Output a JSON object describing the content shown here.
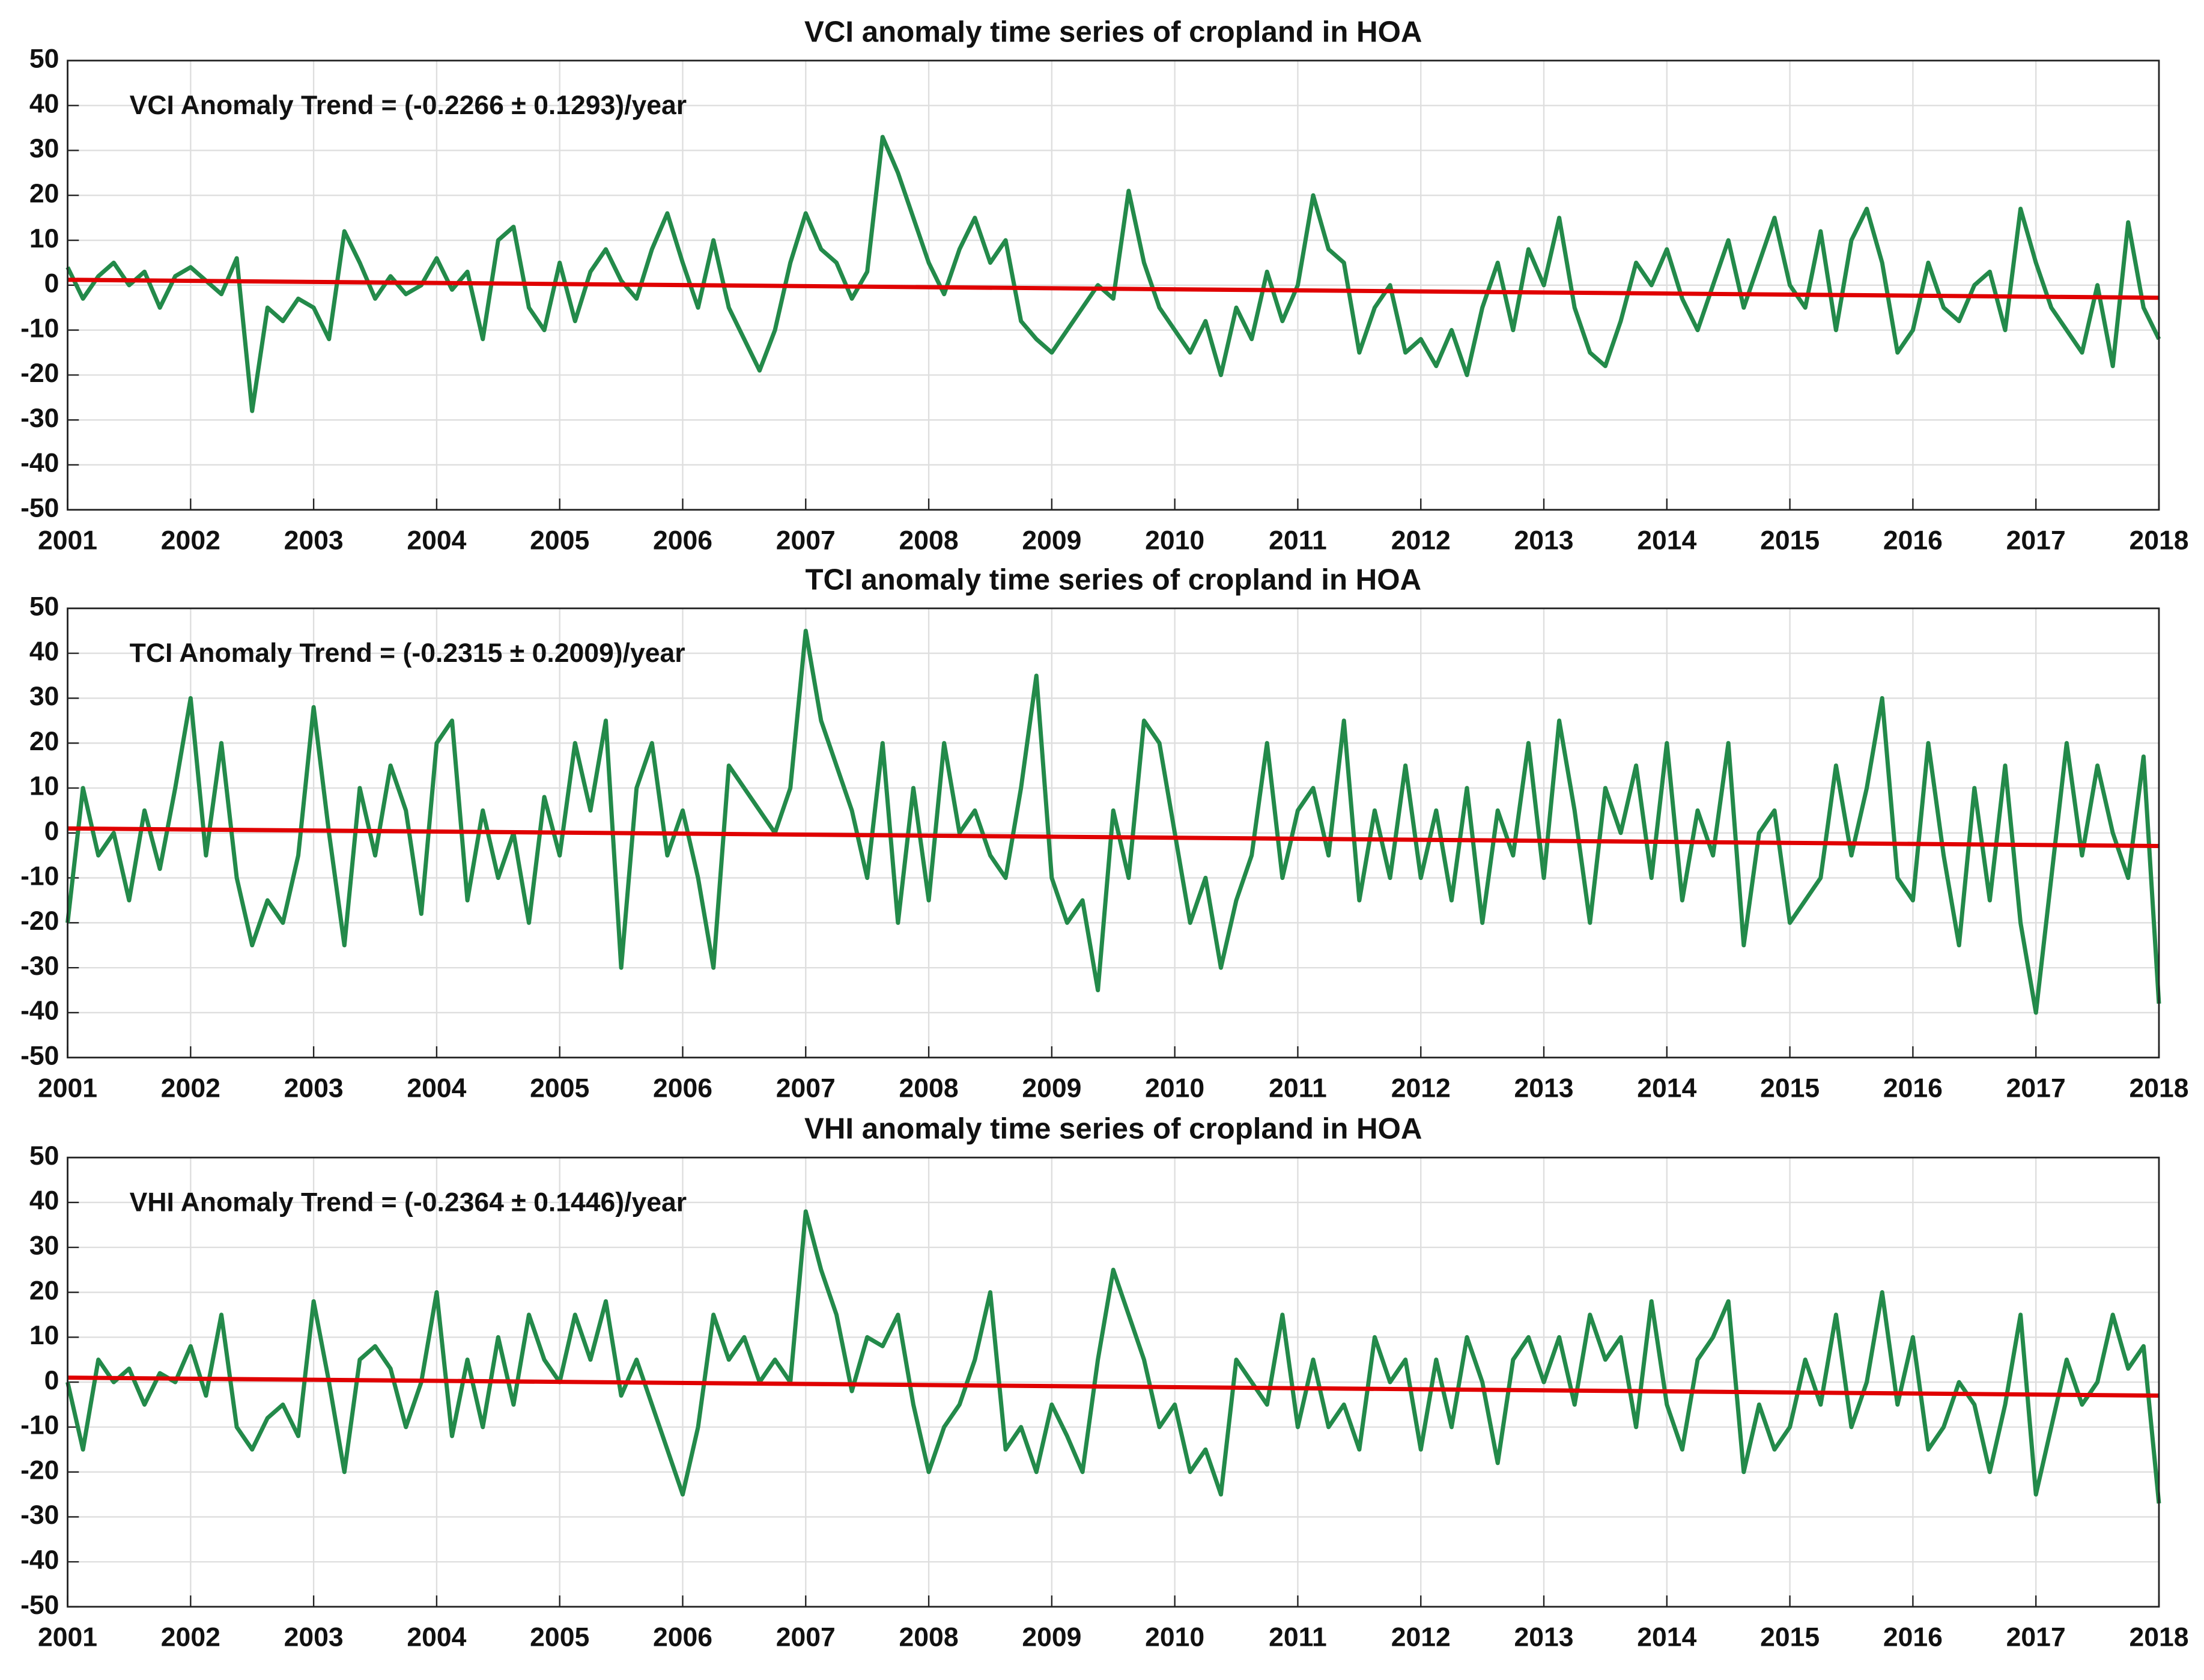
{
  "chart_data": [
    {
      "type": "line",
      "title": "VCI anomaly time series of cropland in HOA",
      "annotation": "VCI Anomaly Trend = (-0.2266 ± 0.1293)/year",
      "xlim": [
        2001,
        2018
      ],
      "ylim": [
        -50,
        50
      ],
      "xticks": [
        2001,
        2002,
        2003,
        2004,
        2005,
        2006,
        2007,
        2008,
        2009,
        2010,
        2011,
        2012,
        2013,
        2014,
        2015,
        2016,
        2017,
        2018
      ],
      "yticks": [
        -50,
        -40,
        -30,
        -20,
        -10,
        0,
        10,
        20,
        30,
        40,
        50
      ],
      "grid": true,
      "series": [
        {
          "color": "#238a4a",
          "x": [
            2001,
            2001.125,
            2001.25,
            2001.375,
            2001.5,
            2001.625,
            2001.75,
            2001.875,
            2002,
            2002.125,
            2002.25,
            2002.375,
            2002.5,
            2002.625,
            2002.75,
            2002.875,
            2003,
            2003.125,
            2003.25,
            2003.375,
            2003.5,
            2003.625,
            2003.75,
            2003.875,
            2004,
            2004.125,
            2004.25,
            2004.375,
            2004.5,
            2004.625,
            2004.75,
            2004.875,
            2005,
            2005.125,
            2005.25,
            2005.375,
            2005.5,
            2005.625,
            2005.75,
            2005.875,
            2006,
            2006.125,
            2006.25,
            2006.375,
            2006.5,
            2006.625,
            2006.75,
            2006.875,
            2007,
            2007.125,
            2007.25,
            2007.375,
            2007.5,
            2007.625,
            2007.75,
            2007.875,
            2008,
            2008.125,
            2008.25,
            2008.375,
            2008.5,
            2008.625,
            2008.75,
            2008.875,
            2009,
            2009.125,
            2009.25,
            2009.375,
            2009.5,
            2009.625,
            2009.75,
            2009.875,
            2010,
            2010.125,
            2010.25,
            2010.375,
            2010.5,
            2010.625,
            2010.75,
            2010.875,
            2011,
            2011.125,
            2011.25,
            2011.375,
            2011.5,
            2011.625,
            2011.75,
            2011.875,
            2012,
            2012.125,
            2012.25,
            2012.375,
            2012.5,
            2012.625,
            2012.75,
            2012.875,
            2013,
            2013.125,
            2013.25,
            2013.375,
            2013.5,
            2013.625,
            2013.75,
            2013.875,
            2014,
            2014.125,
            2014.25,
            2014.375,
            2014.5,
            2014.625,
            2014.75,
            2014.875,
            2015,
            2015.125,
            2015.25,
            2015.375,
            2015.5,
            2015.625,
            2015.75,
            2015.875,
            2016,
            2016.125,
            2016.25,
            2016.375,
            2016.5,
            2016.625,
            2016.75,
            2016.875,
            2017,
            2017.125,
            2017.25,
            2017.375,
            2017.5,
            2017.625,
            2017.75,
            2017.875,
            2018
          ],
          "values": [
            4,
            -3,
            2,
            5,
            0,
            3,
            -5,
            2,
            4,
            1,
            -2,
            6,
            -28,
            -5,
            -8,
            -3,
            -5,
            -12,
            12,
            5,
            -3,
            2,
            -2,
            0,
            6,
            -1,
            3,
            -12,
            10,
            13,
            -5,
            -10,
            5,
            -8,
            3,
            8,
            1,
            -3,
            8,
            16,
            5,
            -5,
            10,
            -5,
            -12,
            -19,
            -10,
            5,
            16,
            8,
            5,
            -3,
            3,
            33,
            25,
            15,
            5,
            -2,
            8,
            15,
            5,
            10,
            -8,
            -12,
            -15,
            -10,
            -5,
            0,
            -3,
            21,
            5,
            -5,
            -10,
            -15,
            -8,
            -20,
            -5,
            -12,
            3,
            -8,
            0,
            20,
            8,
            5,
            -15,
            -5,
            0,
            -15,
            -12,
            -18,
            -10,
            -20,
            -5,
            5,
            -10,
            8,
            0,
            15,
            -5,
            -15,
            -18,
            -8,
            5,
            0,
            8,
            -3,
            -10,
            0,
            10,
            -5,
            5,
            15,
            0,
            -5,
            12,
            -10,
            10,
            17,
            5,
            -15,
            -10,
            5,
            -5,
            -8,
            0,
            3,
            -10,
            17,
            5,
            -5,
            -10,
            -15,
            0,
            -18,
            14,
            -5,
            -12
          ]
        },
        {
          "color": "#e00000",
          "x": [
            2001,
            2018
          ],
          "values": [
            1.2,
            -2.8
          ]
        }
      ]
    },
    {
      "type": "line",
      "title": "TCI anomaly time series of cropland in HOA",
      "annotation": "TCI Anomaly Trend = (-0.2315 ± 0.2009)/year",
      "xlim": [
        2001,
        2018
      ],
      "ylim": [
        -50,
        50
      ],
      "xticks": [
        2001,
        2002,
        2003,
        2004,
        2005,
        2006,
        2007,
        2008,
        2009,
        2010,
        2011,
        2012,
        2013,
        2014,
        2015,
        2016,
        2017,
        2018
      ],
      "yticks": [
        -50,
        -40,
        -30,
        -20,
        -10,
        0,
        10,
        20,
        30,
        40,
        50
      ],
      "grid": true,
      "series": [
        {
          "color": "#238a4a",
          "x": [
            2001,
            2001.125,
            2001.25,
            2001.375,
            2001.5,
            2001.625,
            2001.75,
            2001.875,
            2002,
            2002.125,
            2002.25,
            2002.375,
            2002.5,
            2002.625,
            2002.75,
            2002.875,
            2003,
            2003.125,
            2003.25,
            2003.375,
            2003.5,
            2003.625,
            2003.75,
            2003.875,
            2004,
            2004.125,
            2004.25,
            2004.375,
            2004.5,
            2004.625,
            2004.75,
            2004.875,
            2005,
            2005.125,
            2005.25,
            2005.375,
            2005.5,
            2005.625,
            2005.75,
            2005.875,
            2006,
            2006.125,
            2006.25,
            2006.375,
            2006.5,
            2006.625,
            2006.75,
            2006.875,
            2007,
            2007.125,
            2007.25,
            2007.375,
            2007.5,
            2007.625,
            2007.75,
            2007.875,
            2008,
            2008.125,
            2008.25,
            2008.375,
            2008.5,
            2008.625,
            2008.75,
            2008.875,
            2009,
            2009.125,
            2009.25,
            2009.375,
            2009.5,
            2009.625,
            2009.75,
            2009.875,
            2010,
            2010.125,
            2010.25,
            2010.375,
            2010.5,
            2010.625,
            2010.75,
            2010.875,
            2011,
            2011.125,
            2011.25,
            2011.375,
            2011.5,
            2011.625,
            2011.75,
            2011.875,
            2012,
            2012.125,
            2012.25,
            2012.375,
            2012.5,
            2012.625,
            2012.75,
            2012.875,
            2013,
            2013.125,
            2013.25,
            2013.375,
            2013.5,
            2013.625,
            2013.75,
            2013.875,
            2014,
            2014.125,
            2014.25,
            2014.375,
            2014.5,
            2014.625,
            2014.75,
            2014.875,
            2015,
            2015.125,
            2015.25,
            2015.375,
            2015.5,
            2015.625,
            2015.75,
            2015.875,
            2016,
            2016.125,
            2016.25,
            2016.375,
            2016.5,
            2016.625,
            2016.75,
            2016.875,
            2017,
            2017.125,
            2017.25,
            2017.375,
            2017.5,
            2017.625,
            2017.75,
            2017.875,
            2018
          ],
          "values": [
            -20,
            10,
            -5,
            0,
            -15,
            5,
            -8,
            10,
            30,
            -5,
            20,
            -10,
            -25,
            -15,
            -20,
            -5,
            28,
            0,
            -25,
            10,
            -5,
            15,
            5,
            -18,
            20,
            25,
            -15,
            5,
            -10,
            0,
            -20,
            8,
            -5,
            20,
            5,
            25,
            -30,
            10,
            20,
            -5,
            5,
            -10,
            -30,
            15,
            10,
            5,
            0,
            10,
            45,
            25,
            15,
            5,
            -10,
            20,
            -20,
            10,
            -15,
            20,
            0,
            5,
            -5,
            -10,
            10,
            35,
            -10,
            -20,
            -15,
            -35,
            5,
            -10,
            25,
            20,
            0,
            -20,
            -10,
            -30,
            -15,
            -5,
            20,
            -10,
            5,
            10,
            -5,
            25,
            -15,
            5,
            -10,
            15,
            -10,
            5,
            -15,
            10,
            -20,
            5,
            -5,
            20,
            -10,
            25,
            5,
            -20,
            10,
            0,
            15,
            -10,
            20,
            -15,
            5,
            -5,
            20,
            -25,
            0,
            5,
            -20,
            -15,
            -10,
            15,
            -5,
            10,
            30,
            -10,
            -15,
            20,
            -5,
            -25,
            10,
            -15,
            15,
            -20,
            -40,
            -10,
            20,
            -5,
            15,
            0,
            -10,
            17,
            -38
          ]
        },
        {
          "color": "#e00000",
          "x": [
            2001,
            2018
          ],
          "values": [
            1.0,
            -2.9
          ]
        }
      ]
    },
    {
      "type": "line",
      "title": "VHI anomaly time series of cropland in HOA",
      "annotation": "VHI Anomaly Trend = (-0.2364 ± 0.1446)/year",
      "xlim": [
        2001,
        2018
      ],
      "ylim": [
        -50,
        50
      ],
      "xticks": [
        2001,
        2002,
        2003,
        2004,
        2005,
        2006,
        2007,
        2008,
        2009,
        2010,
        2011,
        2012,
        2013,
        2014,
        2015,
        2016,
        2017,
        2018
      ],
      "yticks": [
        -50,
        -40,
        -30,
        -20,
        -10,
        0,
        10,
        20,
        30,
        40,
        50
      ],
      "grid": true,
      "series": [
        {
          "color": "#238a4a",
          "x": [
            2001,
            2001.125,
            2001.25,
            2001.375,
            2001.5,
            2001.625,
            2001.75,
            2001.875,
            2002,
            2002.125,
            2002.25,
            2002.375,
            2002.5,
            2002.625,
            2002.75,
            2002.875,
            2003,
            2003.125,
            2003.25,
            2003.375,
            2003.5,
            2003.625,
            2003.75,
            2003.875,
            2004,
            2004.125,
            2004.25,
            2004.375,
            2004.5,
            2004.625,
            2004.75,
            2004.875,
            2005,
            2005.125,
            2005.25,
            2005.375,
            2005.5,
            2005.625,
            2005.75,
            2005.875,
            2006,
            2006.125,
            2006.25,
            2006.375,
            2006.5,
            2006.625,
            2006.75,
            2006.875,
            2007,
            2007.125,
            2007.25,
            2007.375,
            2007.5,
            2007.625,
            2007.75,
            2007.875,
            2008,
            2008.125,
            2008.25,
            2008.375,
            2008.5,
            2008.625,
            2008.75,
            2008.875,
            2009,
            2009.125,
            2009.25,
            2009.375,
            2009.5,
            2009.625,
            2009.75,
            2009.875,
            2010,
            2010.125,
            2010.25,
            2010.375,
            2010.5,
            2010.625,
            2010.75,
            2010.875,
            2011,
            2011.125,
            2011.25,
            2011.375,
            2011.5,
            2011.625,
            2011.75,
            2011.875,
            2012,
            2012.125,
            2012.25,
            2012.375,
            2012.5,
            2012.625,
            2012.75,
            2012.875,
            2013,
            2013.125,
            2013.25,
            2013.375,
            2013.5,
            2013.625,
            2013.75,
            2013.875,
            2014,
            2014.125,
            2014.25,
            2014.375,
            2014.5,
            2014.625,
            2014.75,
            2014.875,
            2015,
            2015.125,
            2015.25,
            2015.375,
            2015.5,
            2015.625,
            2015.75,
            2015.875,
            2016,
            2016.125,
            2016.25,
            2016.375,
            2016.5,
            2016.625,
            2016.75,
            2016.875,
            2017,
            2017.125,
            2017.25,
            2017.375,
            2017.5,
            2017.625,
            2017.75,
            2017.875,
            2018
          ],
          "values": [
            0,
            -15,
            5,
            0,
            3,
            -5,
            2,
            0,
            8,
            -3,
            15,
            -10,
            -15,
            -8,
            -5,
            -12,
            18,
            0,
            -20,
            5,
            8,
            3,
            -10,
            0,
            20,
            -12,
            5,
            -10,
            10,
            -5,
            15,
            5,
            0,
            15,
            5,
            18,
            -3,
            5,
            -5,
            -15,
            -25,
            -10,
            15,
            5,
            10,
            0,
            5,
            0,
            38,
            25,
            15,
            -2,
            10,
            8,
            15,
            -5,
            -20,
            -10,
            -5,
            5,
            20,
            -15,
            -10,
            -20,
            -5,
            -12,
            -20,
            5,
            25,
            15,
            5,
            -10,
            -5,
            -20,
            -15,
            -25,
            5,
            0,
            -5,
            15,
            -10,
            5,
            -10,
            -5,
            -15,
            10,
            0,
            5,
            -15,
            5,
            -10,
            10,
            0,
            -18,
            5,
            10,
            0,
            10,
            -5,
            15,
            5,
            10,
            -10,
            18,
            -5,
            -15,
            5,
            10,
            18,
            -20,
            -5,
            -15,
            -10,
            5,
            -5,
            15,
            -10,
            0,
            20,
            -5,
            10,
            -15,
            -10,
            0,
            -5,
            -20,
            -5,
            15,
            -25,
            -10,
            5,
            -5,
            0,
            15,
            3,
            8,
            -27
          ]
        },
        {
          "color": "#e00000",
          "x": [
            2001,
            2018
          ],
          "values": [
            1.0,
            -3.0
          ]
        }
      ]
    }
  ]
}
